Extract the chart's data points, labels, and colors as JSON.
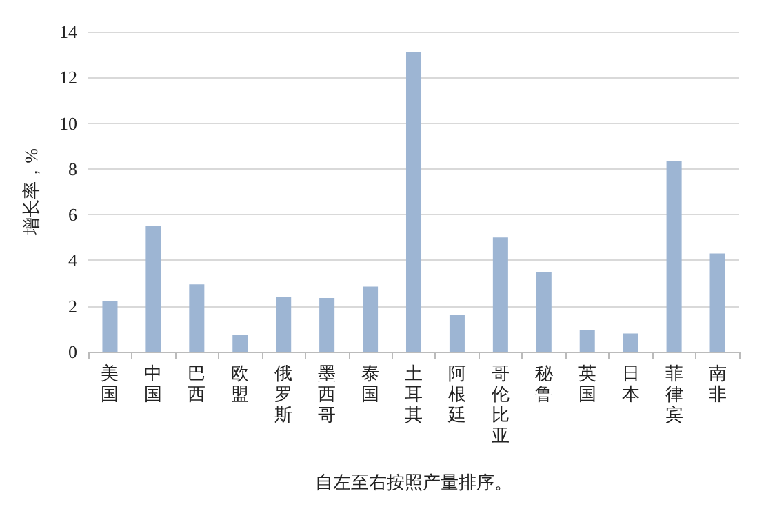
{
  "chart_data": {
    "type": "bar",
    "ylabel": "增长率，%",
    "xlabel": "自左至右按照产量排序。",
    "categories": [
      "美国",
      "中国",
      "巴西",
      "欧盟",
      "俄罗斯",
      "墨西哥",
      "泰国",
      "土耳其",
      "阿根廷",
      "哥伦比亚",
      "秘鲁",
      "英国",
      "日本",
      "菲律宾",
      "南非"
    ],
    "values": [
      2.2,
      5.5,
      2.95,
      0.75,
      2.4,
      2.35,
      2.85,
      13.1,
      1.6,
      5.0,
      3.5,
      0.95,
      0.8,
      8.35,
      4.3
    ],
    "color": "#9db5d3",
    "ylim": [
      0,
      14
    ],
    "yticks": [
      0,
      2,
      4,
      6,
      8,
      10,
      12,
      14
    ],
    "grid": "y"
  }
}
